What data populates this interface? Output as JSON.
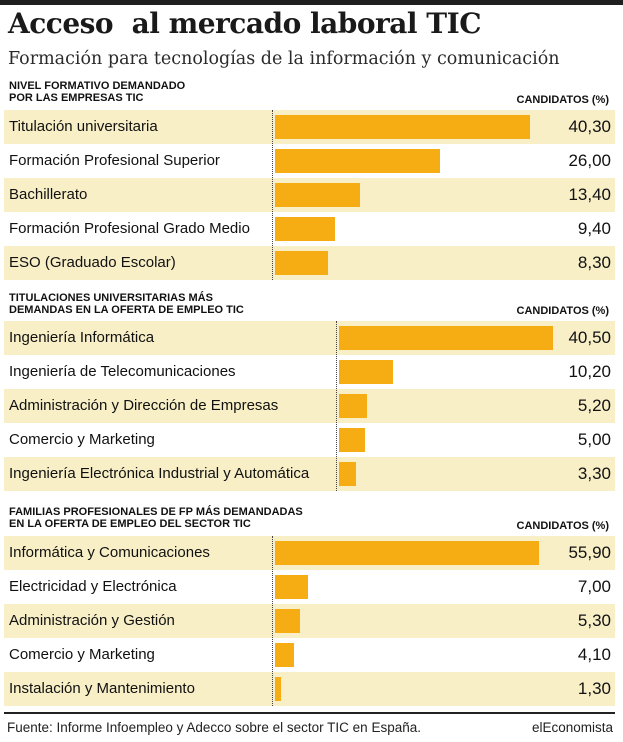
{
  "title": "Acceso  al mercado laboral TIC",
  "subtitle": "Formación para tecnologías de la información y comunicación",
  "source": "Fuente: Informe Infoempleo y Adecco sobre el sector TIC en España.",
  "brand": "elEconomista",
  "colors": {
    "bar": "#f5ad13",
    "row_shade": "#f8efc7",
    "rule": "#1f1f1f"
  },
  "chart_data": [
    {
      "type": "bar",
      "orientation": "horizontal",
      "title": "NIVEL FORMATIVO DEMANDADO\nPOR LAS EMPRESAS TIC",
      "value_header": "CANDIDATOS (%)",
      "categories": [
        "Titulación universitaria",
        "Formación Profesional Superior",
        "Bachillerato",
        "Formación Profesional Grado Medio",
        "ESO (Graduado Escolar)"
      ],
      "values": [
        40.3,
        26.0,
        13.4,
        9.4,
        8.3
      ],
      "value_labels": [
        "40,30",
        "26,00",
        "13,40",
        "9,40",
        "8,30"
      ]
    },
    {
      "type": "bar",
      "orientation": "horizontal",
      "title": "TITULACIONES UNIVERSITARIAS MÁS\nDEMANDAS EN LA OFERTA DE EMPLEO TIC",
      "value_header": "CANDIDATOS (%)",
      "categories": [
        "Ingeniería Informática",
        "Ingeniería de Telecomunicaciones",
        "Administración y Dirección de Empresas",
        "Comercio y Marketing",
        "Ingeniería Electrónica Industrial y Automática"
      ],
      "values": [
        40.5,
        10.2,
        5.2,
        5.0,
        3.3
      ],
      "value_labels": [
        "40,50",
        "10,20",
        "5,20",
        "5,00",
        "3,30"
      ]
    },
    {
      "type": "bar",
      "orientation": "horizontal",
      "title": "FAMILIAS PROFESIONALES DE FP MÁS DEMANDADAS\nEN LA OFERTA DE EMPLEO DEL SECTOR TIC",
      "value_header": "CANDIDATOS (%)",
      "categories": [
        "Informática y Comunicaciones",
        "Electricidad y Electrónica",
        "Administración y Gestión",
        "Comercio y Marketing",
        "Instalación y Mantenimiento"
      ],
      "values": [
        55.9,
        7.0,
        5.3,
        4.1,
        1.3
      ],
      "value_labels": [
        "55,90",
        "7,00",
        "5,30",
        "4,10",
        "1,30"
      ]
    }
  ]
}
